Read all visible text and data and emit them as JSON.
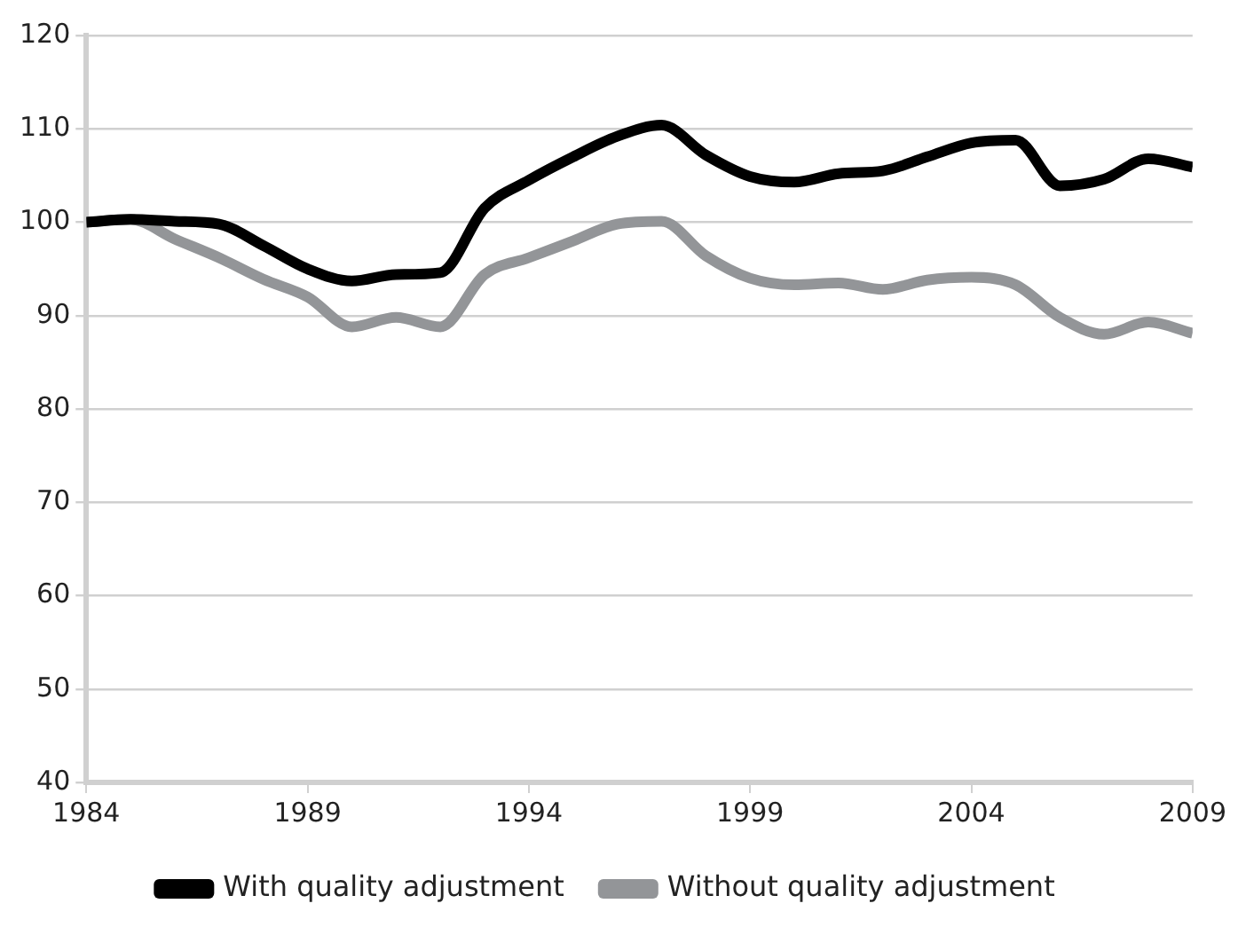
{
  "chart_data": {
    "type": "line",
    "x": [
      1984,
      1985,
      1986,
      1987,
      1988,
      1989,
      1990,
      1991,
      1992,
      1993,
      1994,
      1995,
      1996,
      1997,
      1998,
      1999,
      2000,
      2001,
      2002,
      2003,
      2004,
      2005,
      2006,
      2007,
      2008,
      2009
    ],
    "series": [
      {
        "name": "With quality adjustment",
        "color": "#000000",
        "values": [
          100,
          100.3,
          100.1,
          99.8,
          97.5,
          95,
          93.7,
          94.4,
          94.6,
          101.5,
          104.5,
          107,
          109.2,
          110.4,
          107.2,
          104.9,
          104.3,
          105.2,
          105.5,
          107,
          108.5,
          108.8,
          103.9,
          104.6,
          106.8,
          105.9
        ]
      },
      {
        "name": "Without quality adjustment",
        "color": "#939598",
        "values": [
          100,
          100.3,
          98.2,
          96.2,
          93.9,
          92,
          88.8,
          89.8,
          88.8,
          94.4,
          96.2,
          98,
          99.8,
          100.1,
          96.4,
          94,
          93.3,
          93.5,
          92.8,
          93.8,
          94.1,
          93.3,
          89.8,
          88,
          89.3,
          88.1
        ]
      }
    ],
    "xlim": [
      1984,
      2009
    ],
    "xticks": [
      1984,
      1989,
      1994,
      1999,
      2004,
      2009
    ],
    "ylim": [
      40,
      120
    ],
    "yticks": [
      40,
      50,
      60,
      70,
      80,
      90,
      100,
      110,
      120
    ],
    "grid": "y",
    "legend": "bottom",
    "marker": "none",
    "line_style": "solid"
  }
}
